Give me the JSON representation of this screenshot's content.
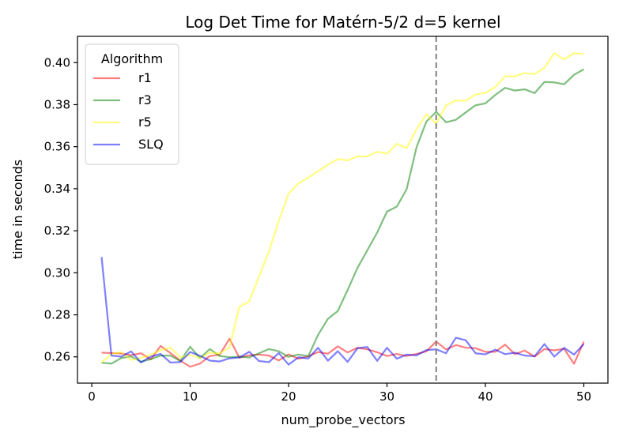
{
  "chart_data": {
    "type": "line",
    "title": "Log Det Time for Matérn-5/2 d=5 kernel",
    "xlabel": "num_probe_vectors",
    "ylabel": "time in seconds",
    "xlim": [
      -1.45,
      52.45
    ],
    "ylim": [
      0.2475,
      0.4125
    ],
    "xticks": [
      0,
      10,
      20,
      30,
      40,
      50
    ],
    "xtick_labels": [
      "0",
      "10",
      "20",
      "30",
      "40",
      "50"
    ],
    "yticks": [
      0.26,
      0.28,
      0.3,
      0.32,
      0.34,
      0.36,
      0.38,
      0.4
    ],
    "ytick_labels": [
      "0.26",
      "0.28",
      "0.30",
      "0.32",
      "0.34",
      "0.36",
      "0.38",
      "0.40"
    ],
    "grid": false,
    "legend": {
      "title": "Algorithm",
      "placement": "top-left"
    },
    "vline": {
      "x": 35,
      "style": "dashed",
      "color": "#808080"
    },
    "x": [
      1,
      2,
      3,
      4,
      5,
      6,
      7,
      8,
      9,
      10,
      11,
      12,
      13,
      14,
      15,
      16,
      17,
      18,
      19,
      20,
      21,
      22,
      23,
      24,
      25,
      26,
      27,
      28,
      29,
      30,
      31,
      32,
      33,
      34,
      35,
      36,
      37,
      38,
      39,
      40,
      41,
      42,
      43,
      44,
      45,
      46,
      47,
      48,
      49,
      50
    ],
    "series": [
      {
        "name": "r1",
        "color": "#ff0000",
        "values": [
          0.262,
          0.2618,
          0.2616,
          0.2608,
          0.2617,
          0.2588,
          0.2652,
          0.2618,
          0.2582,
          0.2553,
          0.2568,
          0.2604,
          0.261,
          0.2686,
          0.2596,
          0.2607,
          0.2611,
          0.2606,
          0.2583,
          0.2612,
          0.2591,
          0.2603,
          0.2623,
          0.2615,
          0.265,
          0.2621,
          0.2643,
          0.2636,
          0.2622,
          0.2604,
          0.2614,
          0.2604,
          0.2614,
          0.2626,
          0.2673,
          0.2635,
          0.2656,
          0.2644,
          0.2641,
          0.2624,
          0.2624,
          0.2658,
          0.2613,
          0.263,
          0.2601,
          0.2637,
          0.2631,
          0.2638,
          0.2567,
          0.2672
        ]
      },
      {
        "name": "r3",
        "color": "#008000",
        "values": [
          0.2572,
          0.2568,
          0.2594,
          0.2602,
          0.2577,
          0.2589,
          0.2606,
          0.2606,
          0.258,
          0.2648,
          0.2594,
          0.2637,
          0.2604,
          0.2598,
          0.2601,
          0.2597,
          0.2617,
          0.2637,
          0.2627,
          0.26,
          0.2611,
          0.2603,
          0.2705,
          0.2781,
          0.2818,
          0.2918,
          0.3023,
          0.3107,
          0.3191,
          0.3291,
          0.3315,
          0.3398,
          0.3597,
          0.3719,
          0.3766,
          0.3716,
          0.3728,
          0.3763,
          0.3797,
          0.3806,
          0.3846,
          0.388,
          0.3867,
          0.3873,
          0.3855,
          0.3908,
          0.3906,
          0.3897,
          0.3942,
          0.3968
        ]
      },
      {
        "name": "r5",
        "color": "#ffff00",
        "values": [
          0.2574,
          0.2614,
          0.2622,
          0.2585,
          0.2595,
          0.2611,
          0.2632,
          0.2644,
          0.2598,
          0.2609,
          0.2594,
          0.262,
          0.2616,
          0.2644,
          0.2838,
          0.2864,
          0.2982,
          0.3101,
          0.3246,
          0.3377,
          0.3425,
          0.3453,
          0.3483,
          0.3514,
          0.3541,
          0.3535,
          0.3554,
          0.3554,
          0.3576,
          0.3566,
          0.3614,
          0.3593,
          0.3684,
          0.3754,
          0.3709,
          0.3797,
          0.382,
          0.3818,
          0.3848,
          0.3856,
          0.3883,
          0.3935,
          0.3935,
          0.395,
          0.3945,
          0.3975,
          0.4045,
          0.4015,
          0.4045,
          0.404
        ]
      },
      {
        "name": "SLQ",
        "color": "#0000ff",
        "values": [
          0.3075,
          0.2606,
          0.2601,
          0.2626,
          0.2573,
          0.2601,
          0.2614,
          0.2573,
          0.2575,
          0.2623,
          0.2605,
          0.2582,
          0.2578,
          0.2593,
          0.2597,
          0.2624,
          0.258,
          0.2575,
          0.2618,
          0.2563,
          0.2598,
          0.2592,
          0.2643,
          0.2582,
          0.2627,
          0.2576,
          0.2641,
          0.2647,
          0.2581,
          0.2643,
          0.2591,
          0.2611,
          0.2607,
          0.2632,
          0.2636,
          0.2617,
          0.2691,
          0.2679,
          0.2617,
          0.2612,
          0.2634,
          0.2613,
          0.262,
          0.2606,
          0.2603,
          0.2661,
          0.2601,
          0.2643,
          0.2611,
          0.2661
        ]
      }
    ]
  }
}
